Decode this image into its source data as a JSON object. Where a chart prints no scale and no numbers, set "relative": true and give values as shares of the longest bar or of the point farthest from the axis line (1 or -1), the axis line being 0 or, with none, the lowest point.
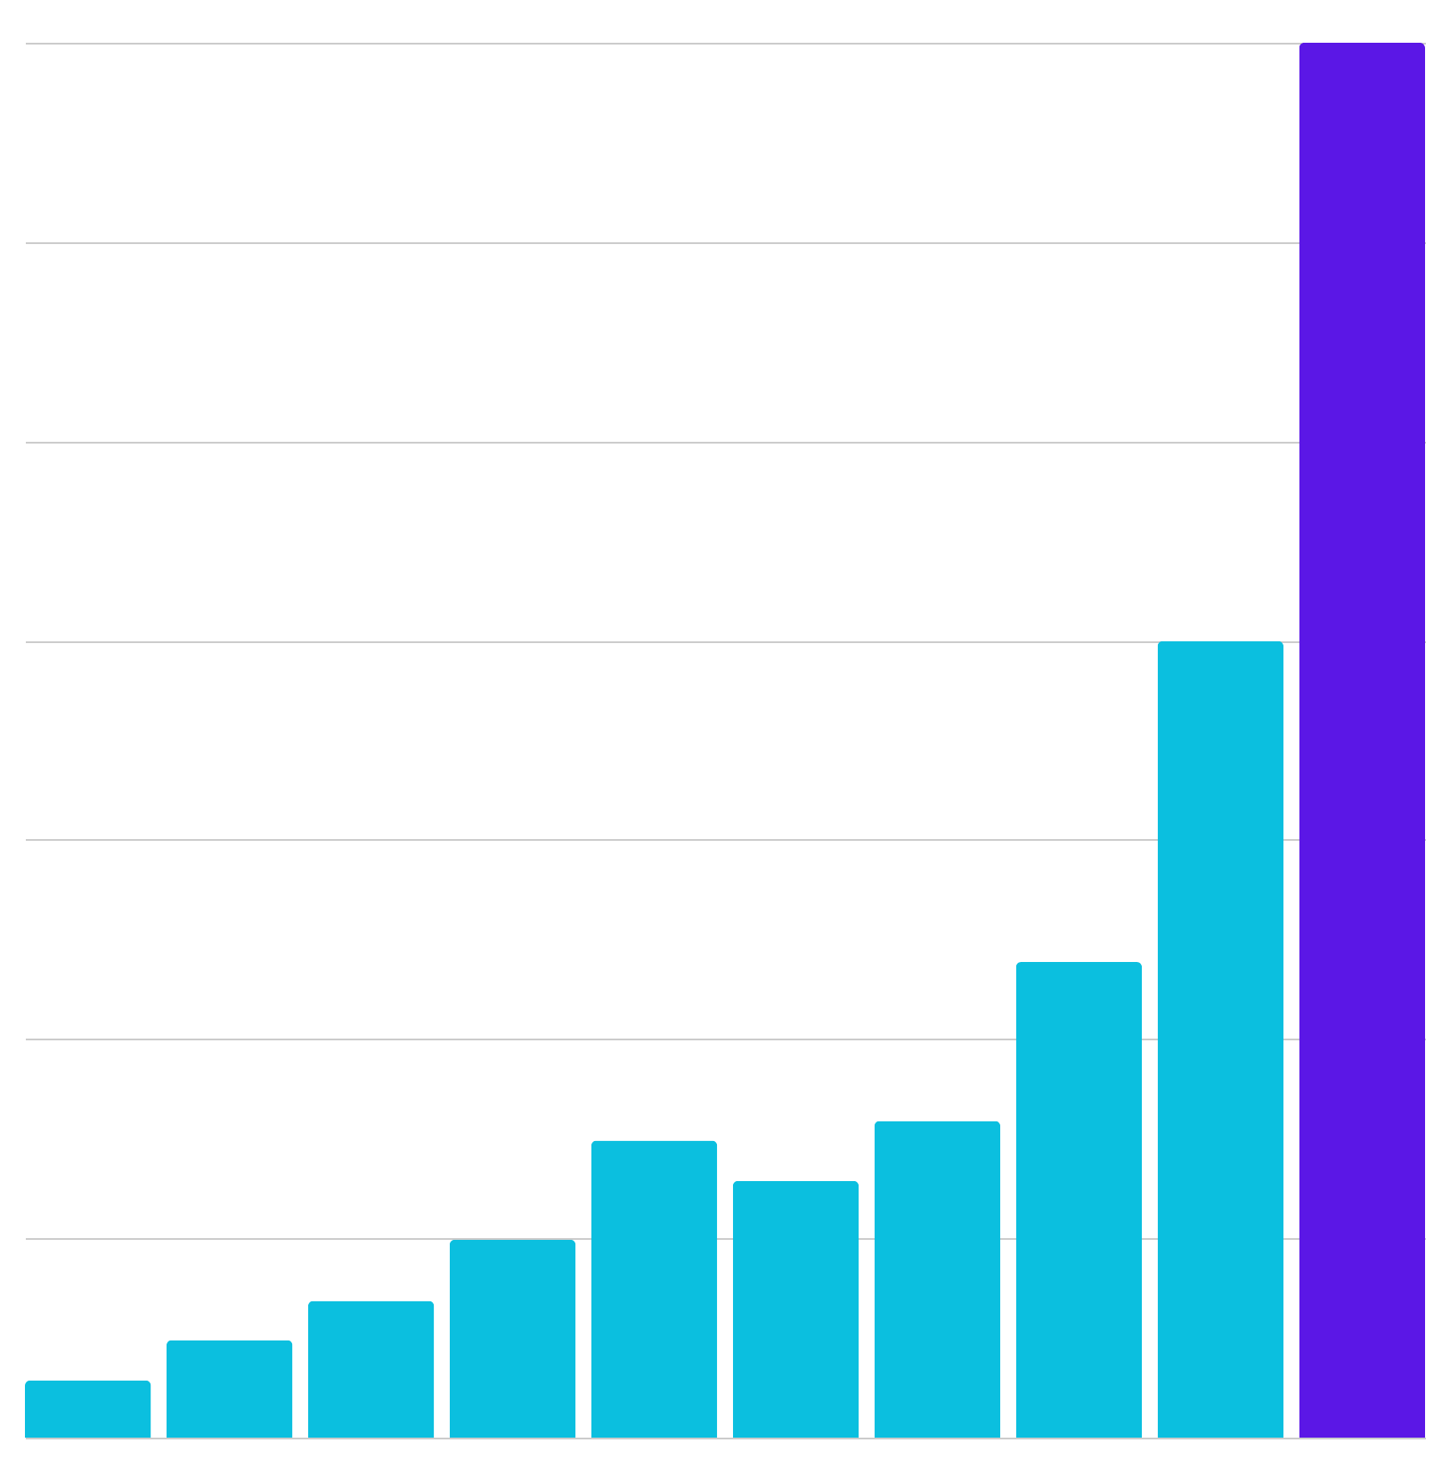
{
  "chart_data": {
    "type": "bar",
    "relative": true,
    "grid": "y",
    "categories": [
      null,
      null,
      null,
      null,
      null,
      null,
      null,
      null,
      null,
      null
    ],
    "values": [
      0.041,
      0.07,
      0.098,
      0.142,
      0.213,
      0.184,
      0.227,
      0.341,
      0.571,
      1
    ],
    "colors": [
      "#0bbfdf",
      "#0bbfdf",
      "#0bbfdf",
      "#0bbfdf",
      "#0bbfdf",
      "#0bbfdf",
      "#0bbfdf",
      "#0bbfdf",
      "#0bbfdf",
      "#5b17e6"
    ]
  }
}
